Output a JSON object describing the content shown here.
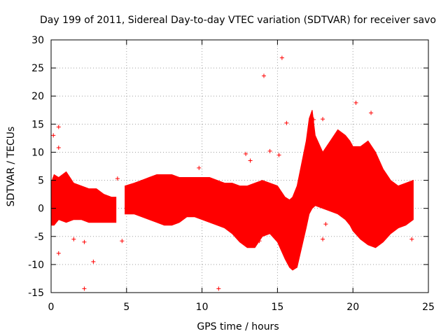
{
  "chart_data": {
    "type": "scatter",
    "title": "Day 199 of 2011, Sidereal Day-to-day VTEC variation (SDTVAR) for receiver savo",
    "xlabel": "GPS time / hours",
    "ylabel": "SDTVAR / TECUs",
    "xlim": [
      0,
      25
    ],
    "ylim": [
      -15,
      30
    ],
    "xticks": [
      0,
      5,
      10,
      15,
      20,
      25
    ],
    "yticks": [
      -15,
      -10,
      -5,
      0,
      5,
      10,
      15,
      20,
      25,
      30
    ],
    "grid": true,
    "marker": "+",
    "color": "#ff0000",
    "series": [
      {
        "name": "SDTVAR",
        "segments": [
          {
            "x": [
              0.0,
              0.2,
              0.5,
              1.0,
              1.5,
              2.0,
              2.5,
              3.0,
              3.5,
              4.0,
              4.3
            ],
            "upper": [
              4.5,
              6.0,
              5.5,
              6.5,
              4.5,
              4.0,
              3.5,
              3.5,
              2.5,
              2.0,
              2.0
            ],
            "lower": [
              -3.0,
              -3.0,
              -2.0,
              -2.5,
              -2.0,
              -2.0,
              -2.5,
              -2.5,
              -2.5,
              -2.5,
              -2.5
            ]
          },
          {
            "x": [
              4.9,
              5.5,
              6.0,
              6.5,
              7.0,
              7.5,
              8.0,
              8.5,
              9.0,
              9.5,
              10.0,
              10.5,
              11.0,
              11.5,
              12.0,
              12.5,
              13.0,
              13.5,
              14.0,
              14.5,
              15.0,
              15.5,
              15.8,
              16.0,
              16.3,
              16.6,
              16.9,
              17.1,
              17.3,
              17.5,
              18.0,
              18.5,
              19.0,
              19.5,
              19.8,
              20.0,
              20.5,
              21.0,
              21.5,
              22.0,
              22.5,
              23.0,
              23.5,
              24.0
            ],
            "upper": [
              4.0,
              4.5,
              5.0,
              5.5,
              6.0,
              6.0,
              6.0,
              5.5,
              5.5,
              5.5,
              5.5,
              5.5,
              5.0,
              4.5,
              4.5,
              4.0,
              4.0,
              4.5,
              5.0,
              4.5,
              4.0,
              2.0,
              1.5,
              2.0,
              4.0,
              8.0,
              12.0,
              16.0,
              17.5,
              13.0,
              10.0,
              12.0,
              14.0,
              13.0,
              12.0,
              11.0,
              11.0,
              12.0,
              10.0,
              7.0,
              5.0,
              4.0,
              4.5,
              5.0
            ],
            "lower": [
              -1.0,
              -1.0,
              -1.5,
              -2.0,
              -2.5,
              -3.0,
              -3.0,
              -2.5,
              -1.5,
              -1.5,
              -2.0,
              -2.5,
              -3.0,
              -3.5,
              -4.5,
              -6.0,
              -7.0,
              -7.0,
              -5.0,
              -4.5,
              -6.0,
              -9.0,
              -10.5,
              -11.0,
              -10.5,
              -7.0,
              -3.5,
              -1.0,
              0.0,
              0.5,
              0.0,
              -0.5,
              -1.0,
              -2.0,
              -3.0,
              -4.0,
              -5.5,
              -6.5,
              -7.0,
              -6.0,
              -4.5,
              -3.5,
              -3.0,
              -2.0
            ]
          }
        ],
        "outliers": [
          [
            0.15,
            13.0
          ],
          [
            0.5,
            14.5
          ],
          [
            0.5,
            10.8
          ],
          [
            0.5,
            -8.0
          ],
          [
            2.2,
            -14.3
          ],
          [
            2.8,
            -9.5
          ],
          [
            2.2,
            -6.0
          ],
          [
            1.5,
            -5.5
          ],
          [
            4.7,
            -5.8
          ],
          [
            4.4,
            5.3
          ],
          [
            9.8,
            7.2
          ],
          [
            11.1,
            -14.3
          ],
          [
            12.9,
            9.7
          ],
          [
            13.2,
            8.5
          ],
          [
            13.8,
            -5.8
          ],
          [
            14.1,
            23.6
          ],
          [
            14.5,
            10.2
          ],
          [
            15.3,
            26.8
          ],
          [
            15.6,
            15.2
          ],
          [
            15.1,
            9.5
          ],
          [
            17.4,
            15.8
          ],
          [
            18.0,
            15.9
          ],
          [
            18.2,
            -2.8
          ],
          [
            18.0,
            -5.5
          ],
          [
            20.2,
            18.8
          ],
          [
            20.4,
            10.5
          ],
          [
            21.2,
            17.0
          ],
          [
            23.9,
            -5.5
          ]
        ]
      }
    ]
  }
}
